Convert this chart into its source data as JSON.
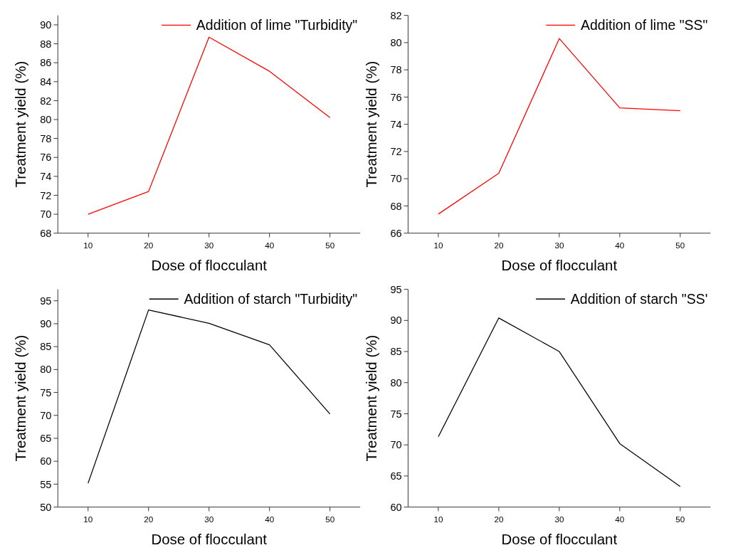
{
  "chart_data": [
    {
      "type": "line",
      "xlabel": "Dose of flocculant",
      "ylabel": "Treatment yield (%)",
      "x": [
        10,
        20,
        30,
        40,
        50
      ],
      "xlim": [
        5,
        55
      ],
      "xticks": [
        10,
        20,
        30,
        40,
        50
      ],
      "ylim": [
        68,
        91
      ],
      "yticks": [
        68,
        70,
        72,
        74,
        76,
        78,
        80,
        82,
        84,
        86,
        88,
        90
      ],
      "legend": "top right",
      "series": [
        {
          "name": "Addition of lime \"Turbidity\"",
          "color": "#ff0000",
          "values": [
            70,
            72.4,
            88.7,
            85.1,
            80.2
          ]
        }
      ]
    },
    {
      "type": "line",
      "xlabel": "Dose of flocculant",
      "ylabel": "Treatment yield (%)",
      "x": [
        10,
        20,
        30,
        40,
        50
      ],
      "xlim": [
        5,
        55
      ],
      "xticks": [
        10,
        20,
        30,
        40,
        50
      ],
      "ylim": [
        66,
        82
      ],
      "yticks": [
        66,
        68,
        70,
        72,
        74,
        76,
        78,
        80,
        82
      ],
      "legend": "top right",
      "series": [
        {
          "name": "Addition of lime \"SS\"",
          "color": "#ff0000",
          "values": [
            67.4,
            70.4,
            80.3,
            75.2,
            75.0
          ]
        }
      ]
    },
    {
      "type": "line",
      "xlabel": "Dose of  flocculant",
      "ylabel": "Treatment yield (%)",
      "x": [
        10,
        20,
        30,
        40,
        50
      ],
      "xlim": [
        5,
        55
      ],
      "xticks": [
        10,
        20,
        30,
        40,
        50
      ],
      "ylim": [
        50,
        97.5
      ],
      "yticks": [
        50,
        55,
        60,
        65,
        70,
        75,
        80,
        85,
        90,
        95
      ],
      "legend": "top right",
      "series": [
        {
          "name": "Addition of starch \"Turbidity\"",
          "color": "#000000",
          "values": [
            55.2,
            93,
            90.1,
            85.4,
            70.3
          ]
        }
      ]
    },
    {
      "type": "line",
      "xlabel": "Dose of flocculant",
      "ylabel": "Treatment yield (%)",
      "x": [
        10,
        20,
        30,
        40,
        50
      ],
      "xlim": [
        5,
        55
      ],
      "xticks": [
        10,
        20,
        30,
        40,
        50
      ],
      "ylim": [
        60,
        95
      ],
      "yticks": [
        60,
        65,
        70,
        75,
        80,
        85,
        90,
        95
      ],
      "legend": "top right",
      "series": [
        {
          "name": "Addition of starch \"SS'",
          "color": "#000000",
          "values": [
            71.3,
            90.4,
            85,
            70.2,
            63.3
          ]
        }
      ]
    }
  ]
}
